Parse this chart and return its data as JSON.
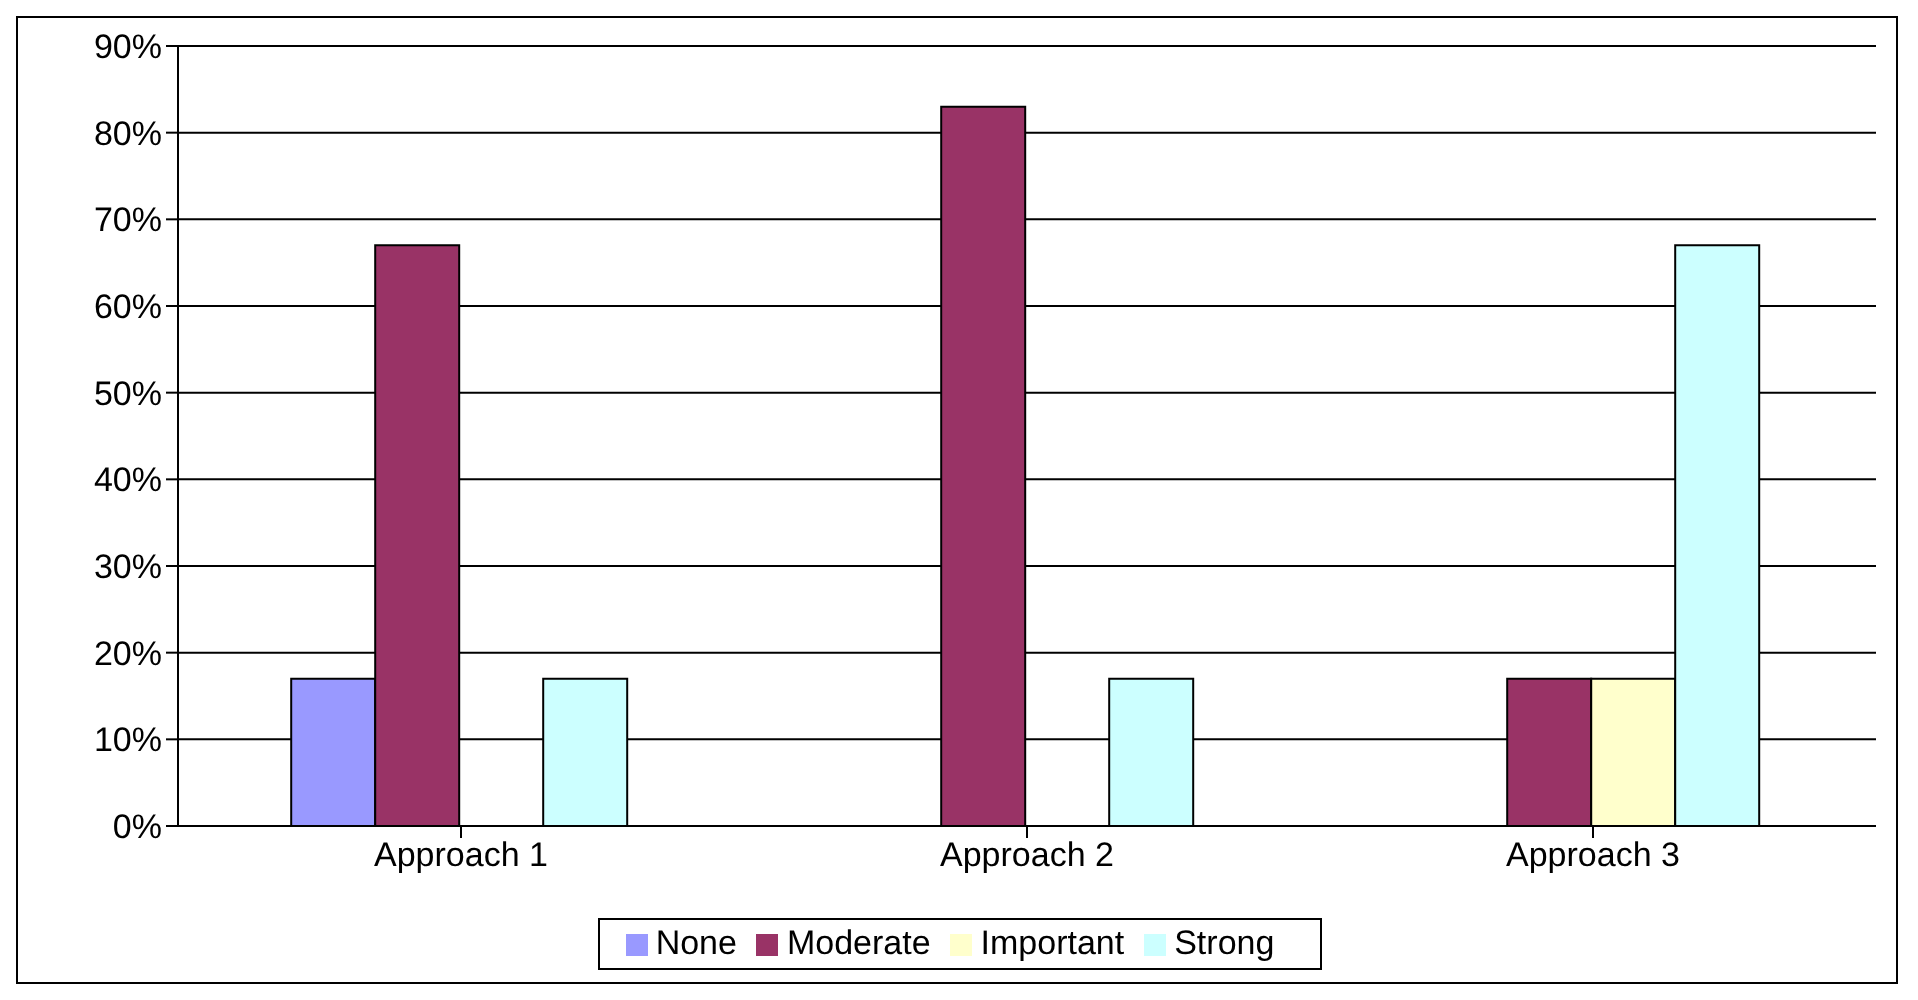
{
  "chart_data": {
    "type": "bar",
    "categories": [
      "Approach 1",
      "Approach 2",
      "Approach 3"
    ],
    "series": [
      {
        "name": "None",
        "color": "#9999ff",
        "values": [
          17,
          0,
          0
        ]
      },
      {
        "name": "Moderate",
        "color": "#993366",
        "values": [
          67,
          83,
          17
        ]
      },
      {
        "name": "Important",
        "color": "#ffffcc",
        "values": [
          0,
          0,
          17
        ]
      },
      {
        "name": "Strong",
        "color": "#ccffff",
        "values": [
          17,
          17,
          67
        ]
      }
    ],
    "ylim": [
      0,
      90
    ],
    "yticks": [
      {
        "value": 0,
        "label": "0%"
      },
      {
        "value": 10,
        "label": "10%"
      },
      {
        "value": 20,
        "label": "20%"
      },
      {
        "value": 30,
        "label": "30%"
      },
      {
        "value": 40,
        "label": "40%"
      },
      {
        "value": 50,
        "label": "50%"
      },
      {
        "value": 60,
        "label": "60%"
      },
      {
        "value": 70,
        "label": "70%"
      },
      {
        "value": 80,
        "label": "80%"
      },
      {
        "value": 90,
        "label": "90%"
      }
    ],
    "grid": "y",
    "legend": "bottom"
  }
}
